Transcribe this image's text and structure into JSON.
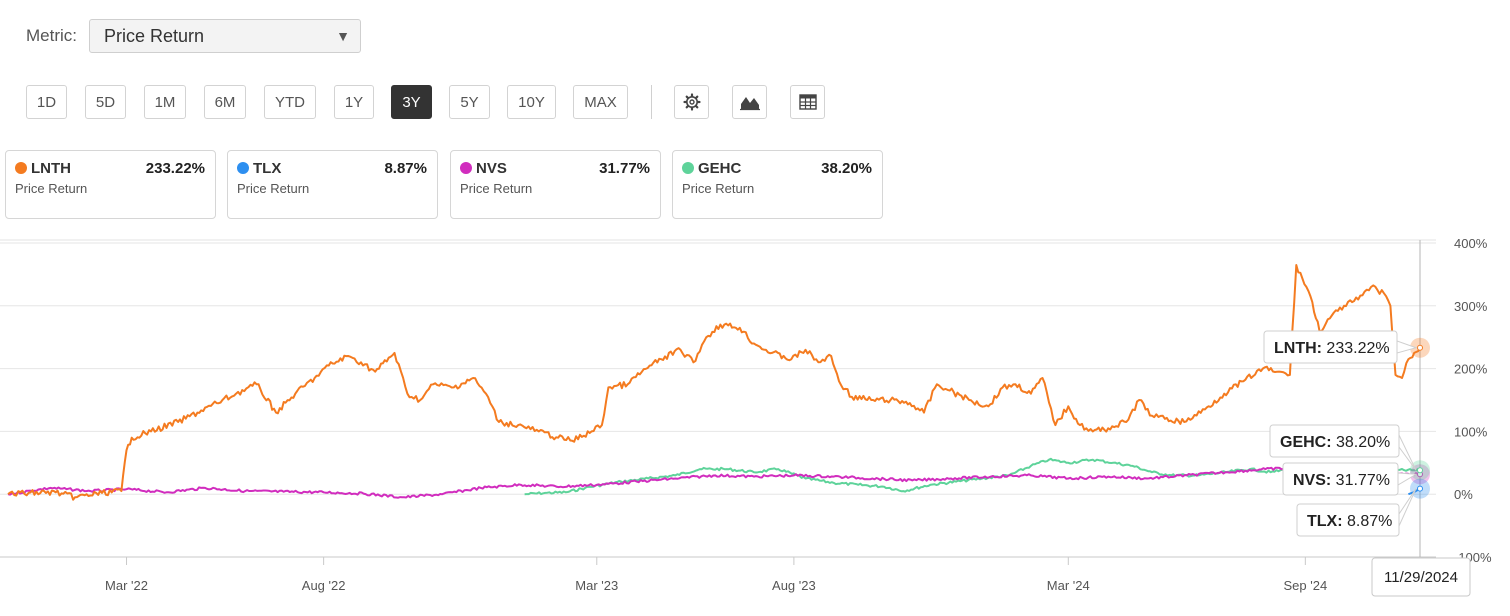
{
  "metric": {
    "label": "Metric:",
    "value": "Price Return"
  },
  "ranges": [
    "1D",
    "5D",
    "1M",
    "6M",
    "YTD",
    "1Y",
    "3Y",
    "5Y",
    "10Y",
    "MAX"
  ],
  "active_range": "3Y",
  "tool_icons": [
    "settings-icon",
    "chart-type-icon",
    "table-icon"
  ],
  "cards": [
    {
      "ticker": "LNTH",
      "value": "233.22%",
      "sub": "Price Return",
      "color": "#f47b20"
    },
    {
      "ticker": "TLX",
      "value": "8.87%",
      "sub": "Price Return",
      "color": "#2d8ff0"
    },
    {
      "ticker": "NVS",
      "value": "31.77%",
      "sub": "Price Return",
      "color": "#d12dbe"
    },
    {
      "ticker": "GEHC",
      "value": "38.20%",
      "sub": "Price Return",
      "color": "#5ed39a"
    }
  ],
  "tooltips": [
    {
      "ticker": "LNTH",
      "value": "233.22%"
    },
    {
      "ticker": "GEHC",
      "value": "38.20%"
    },
    {
      "ticker": "NVS",
      "value": "31.77%"
    },
    {
      "ticker": "TLX",
      "value": "8.87%"
    }
  ],
  "hover_date": "11/29/2024",
  "chart_data": {
    "type": "line",
    "x_range": [
      "2021-11-29",
      "2024-11-29"
    ],
    "ylim": [
      -100,
      400
    ],
    "y_ticks": [
      400,
      300,
      200,
      100,
      0,
      -100
    ],
    "y_tick_labels": [
      "400%",
      "300%",
      "200%",
      "100%",
      "0%",
      "-100%"
    ],
    "x_ticks": [
      {
        "date": "2022-03-01",
        "label": "Mar '22"
      },
      {
        "date": "2022-08-01",
        "label": "Aug '22"
      },
      {
        "date": "2023-03-01",
        "label": "Mar '23"
      },
      {
        "date": "2023-08-01",
        "label": "Aug '23"
      },
      {
        "date": "2024-03-01",
        "label": "Mar '24"
      },
      {
        "date": "2024-09-01",
        "label": "Sep '24"
      }
    ],
    "grid": true,
    "series": [
      {
        "name": "LNTH",
        "color": "#f47b20",
        "points": [
          [
            "2021-11-29",
            0
          ],
          [
            "2021-12-15",
            2
          ],
          [
            "2022-01-05",
            3
          ],
          [
            "2022-01-20",
            -5
          ],
          [
            "2022-02-10",
            2
          ],
          [
            "2022-02-25",
            5
          ],
          [
            "2022-03-01",
            70
          ],
          [
            "2022-03-05",
            90
          ],
          [
            "2022-03-20",
            100
          ],
          [
            "2022-04-10",
            115
          ],
          [
            "2022-04-25",
            130
          ],
          [
            "2022-05-10",
            145
          ],
          [
            "2022-05-25",
            160
          ],
          [
            "2022-06-10",
            175
          ],
          [
            "2022-06-25",
            130
          ],
          [
            "2022-07-10",
            160
          ],
          [
            "2022-07-25",
            185
          ],
          [
            "2022-08-05",
            205
          ],
          [
            "2022-08-20",
            220
          ],
          [
            "2022-08-30",
            210
          ],
          [
            "2022-09-10",
            195
          ],
          [
            "2022-09-25",
            225
          ],
          [
            "2022-10-05",
            160
          ],
          [
            "2022-10-15",
            150
          ],
          [
            "2022-10-25",
            175
          ],
          [
            "2022-11-10",
            170
          ],
          [
            "2022-11-25",
            185
          ],
          [
            "2022-12-05",
            160
          ],
          [
            "2022-12-15",
            115
          ],
          [
            "2022-12-30",
            110
          ],
          [
            "2023-01-15",
            100
          ],
          [
            "2023-01-30",
            90
          ],
          [
            "2023-02-10",
            85
          ],
          [
            "2023-02-25",
            100
          ],
          [
            "2023-03-05",
            110
          ],
          [
            "2023-03-10",
            170
          ],
          [
            "2023-03-25",
            175
          ],
          [
            "2023-04-05",
            195
          ],
          [
            "2023-04-20",
            215
          ],
          [
            "2023-05-05",
            230
          ],
          [
            "2023-05-15",
            210
          ],
          [
            "2023-05-25",
            250
          ],
          [
            "2023-06-05",
            270
          ],
          [
            "2023-06-20",
            265
          ],
          [
            "2023-07-01",
            240
          ],
          [
            "2023-07-15",
            225
          ],
          [
            "2023-07-30",
            215
          ],
          [
            "2023-08-10",
            230
          ],
          [
            "2023-08-20",
            210
          ],
          [
            "2023-08-30",
            220
          ],
          [
            "2023-09-05",
            180
          ],
          [
            "2023-09-15",
            155
          ],
          [
            "2023-09-30",
            150
          ],
          [
            "2023-10-15",
            150
          ],
          [
            "2023-10-30",
            145
          ],
          [
            "2023-11-10",
            130
          ],
          [
            "2023-11-20",
            175
          ],
          [
            "2023-11-30",
            165
          ],
          [
            "2023-12-15",
            150
          ],
          [
            "2023-12-30",
            140
          ],
          [
            "2024-01-10",
            170
          ],
          [
            "2024-01-20",
            175
          ],
          [
            "2024-02-01",
            160
          ],
          [
            "2024-02-10",
            185
          ],
          [
            "2024-02-20",
            110
          ],
          [
            "2024-03-01",
            140
          ],
          [
            "2024-03-10",
            110
          ],
          [
            "2024-03-20",
            100
          ],
          [
            "2024-04-01",
            105
          ],
          [
            "2024-04-15",
            115
          ],
          [
            "2024-04-25",
            150
          ],
          [
            "2024-05-05",
            125
          ],
          [
            "2024-05-15",
            120
          ],
          [
            "2024-05-30",
            115
          ],
          [
            "2024-06-15",
            135
          ],
          [
            "2024-06-30",
            160
          ],
          [
            "2024-07-15",
            180
          ],
          [
            "2024-07-30",
            200
          ],
          [
            "2024-08-10",
            195
          ],
          [
            "2024-08-20",
            190
          ],
          [
            "2024-08-25",
            365
          ],
          [
            "2024-09-05",
            315
          ],
          [
            "2024-09-12",
            260
          ],
          [
            "2024-09-20",
            280
          ],
          [
            "2024-10-01",
            300
          ],
          [
            "2024-10-12",
            310
          ],
          [
            "2024-10-22",
            330
          ],
          [
            "2024-11-01",
            320
          ],
          [
            "2024-11-06",
            300
          ],
          [
            "2024-11-10",
            190
          ],
          [
            "2024-11-15",
            185
          ],
          [
            "2024-11-20",
            215
          ],
          [
            "2024-11-29",
            233.22
          ]
        ]
      },
      {
        "name": "NVS",
        "color": "#d12dbe",
        "points": [
          [
            "2021-11-29",
            0
          ],
          [
            "2022-01-01",
            10
          ],
          [
            "2022-02-01",
            5
          ],
          [
            "2022-03-01",
            8
          ],
          [
            "2022-04-01",
            3
          ],
          [
            "2022-05-01",
            10
          ],
          [
            "2022-06-01",
            5
          ],
          [
            "2022-07-01",
            4
          ],
          [
            "2022-08-01",
            3
          ],
          [
            "2022-09-01",
            1
          ],
          [
            "2022-10-01",
            -5
          ],
          [
            "2022-11-01",
            0
          ],
          [
            "2022-12-01",
            10
          ],
          [
            "2023-01-01",
            15
          ],
          [
            "2023-02-01",
            12
          ],
          [
            "2023-03-01",
            15
          ],
          [
            "2023-04-01",
            20
          ],
          [
            "2023-05-01",
            25
          ],
          [
            "2023-06-01",
            30
          ],
          [
            "2023-07-01",
            28
          ],
          [
            "2023-08-01",
            30
          ],
          [
            "2023-09-01",
            28
          ],
          [
            "2023-10-01",
            25
          ],
          [
            "2023-11-01",
            22
          ],
          [
            "2023-12-01",
            25
          ],
          [
            "2024-01-01",
            28
          ],
          [
            "2024-02-01",
            30
          ],
          [
            "2024-03-01",
            25
          ],
          [
            "2024-04-01",
            28
          ],
          [
            "2024-05-01",
            25
          ],
          [
            "2024-06-01",
            30
          ],
          [
            "2024-07-01",
            35
          ],
          [
            "2024-08-01",
            40
          ],
          [
            "2024-09-01",
            42
          ],
          [
            "2024-10-01",
            40
          ],
          [
            "2024-11-01",
            35
          ],
          [
            "2024-11-29",
            31.77
          ]
        ]
      },
      {
        "name": "GEHC",
        "color": "#5ed39a",
        "points": [
          [
            "2023-01-04",
            0
          ],
          [
            "2023-01-20",
            2
          ],
          [
            "2023-02-05",
            3
          ],
          [
            "2023-02-20",
            10
          ],
          [
            "2023-03-05",
            15
          ],
          [
            "2023-03-20",
            20
          ],
          [
            "2023-04-10",
            25
          ],
          [
            "2023-05-01",
            30
          ],
          [
            "2023-05-20",
            40
          ],
          [
            "2023-06-10",
            40
          ],
          [
            "2023-07-01",
            35
          ],
          [
            "2023-07-20",
            40
          ],
          [
            "2023-08-10",
            25
          ],
          [
            "2023-09-01",
            18
          ],
          [
            "2023-09-20",
            15
          ],
          [
            "2023-10-10",
            12
          ],
          [
            "2023-10-25",
            5
          ],
          [
            "2023-11-15",
            15
          ],
          [
            "2023-12-05",
            20
          ],
          [
            "2023-12-25",
            25
          ],
          [
            "2024-01-15",
            30
          ],
          [
            "2024-02-01",
            45
          ],
          [
            "2024-02-15",
            55
          ],
          [
            "2024-03-01",
            50
          ],
          [
            "2024-03-20",
            55
          ],
          [
            "2024-04-05",
            50
          ],
          [
            "2024-04-20",
            45
          ],
          [
            "2024-05-05",
            35
          ],
          [
            "2024-05-20",
            30
          ],
          [
            "2024-06-10",
            30
          ],
          [
            "2024-07-01",
            35
          ],
          [
            "2024-07-20",
            40
          ],
          [
            "2024-08-05",
            35
          ],
          [
            "2024-08-25",
            42
          ],
          [
            "2024-09-15",
            45
          ],
          [
            "2024-10-10",
            40
          ],
          [
            "2024-11-01",
            38
          ],
          [
            "2024-11-29",
            38.2
          ]
        ]
      },
      {
        "name": "TLX",
        "color": "#2d8ff0",
        "points": [
          [
            "2024-11-20",
            0
          ],
          [
            "2024-11-24",
            3
          ],
          [
            "2024-11-29",
            8.87
          ]
        ]
      }
    ]
  }
}
